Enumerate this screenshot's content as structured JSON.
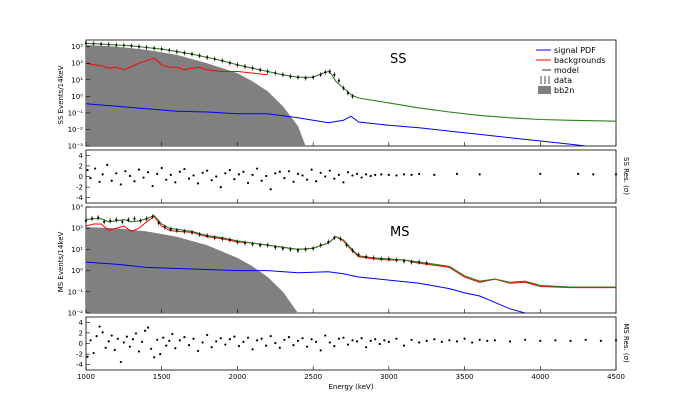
{
  "chart_data": [
    {
      "type": "line",
      "panel": "SS",
      "label": "SS",
      "ylabel": "SS Events/14keV",
      "yscale": "log",
      "xlim": [
        1000,
        4500
      ],
      "ylim_exp": [
        -3,
        3.4
      ],
      "yticks": [
        "10³",
        "10²",
        "10¹",
        "10⁰",
        "10⁻¹",
        "10⁻²",
        "10⁻³"
      ],
      "legend": [
        "signal PDF",
        "backgrounds",
        "model",
        "data",
        "bb2n"
      ],
      "series": [
        {
          "name": "bb2n",
          "x": [
            1000,
            1200,
            1400,
            1600,
            1800,
            2000,
            2100,
            2200,
            2300,
            2400,
            2450
          ],
          "log10y": [
            3.1,
            3.0,
            2.8,
            2.5,
            2.0,
            1.4,
            0.9,
            0.3,
            -0.6,
            -1.8,
            -3.0
          ]
        },
        {
          "name": "signal PDF",
          "x": [
            1000,
            1200,
            1400,
            1600,
            1800,
            2000,
            2200,
            2400,
            2600,
            2700,
            2750,
            2800,
            3000,
            3200,
            3400,
            3600,
            3800,
            4000,
            4200,
            4300
          ],
          "log10y": [
            -0.45,
            -0.6,
            -0.75,
            -0.9,
            -0.95,
            -1.05,
            -1.05,
            -1.3,
            -1.6,
            -1.45,
            -1.2,
            -1.55,
            -1.75,
            -1.9,
            -2.1,
            -2.3,
            -2.5,
            -2.7,
            -2.9,
            -3.0
          ]
        },
        {
          "name": "backgrounds",
          "x": [
            1000,
            1050,
            1100,
            1150,
            1200,
            1250,
            1300,
            1350,
            1400,
            1450,
            1500,
            1550,
            1600,
            1650,
            1700,
            1750,
            1800,
            1850,
            1900,
            1950,
            2000,
            2050,
            2100,
            2150,
            2200
          ],
          "log10y": [
            2.0,
            1.9,
            1.85,
            1.7,
            1.75,
            1.6,
            1.8,
            2.0,
            2.15,
            2.3,
            1.9,
            1.75,
            1.75,
            1.6,
            1.7,
            1.75,
            1.6,
            1.55,
            1.5,
            1.5,
            1.5,
            1.45,
            1.4,
            1.35,
            1.3
          ]
        },
        {
          "name": "model",
          "x": [
            1000,
            1100,
            1200,
            1300,
            1400,
            1500,
            1600,
            1700,
            1800,
            1900,
            2000,
            2100,
            2200,
            2300,
            2400,
            2500,
            2550,
            2600,
            2620,
            2650,
            2700,
            2750,
            2800,
            3000,
            3200,
            3400,
            3600,
            3800,
            4000,
            4200,
            4500
          ],
          "log10y": [
            3.2,
            3.15,
            3.1,
            3.05,
            2.95,
            2.85,
            2.7,
            2.55,
            2.35,
            2.15,
            1.9,
            1.7,
            1.5,
            1.3,
            1.15,
            1.15,
            1.35,
            1.5,
            1.35,
            0.9,
            0.5,
            0.1,
            -0.1,
            -0.4,
            -0.7,
            -0.95,
            -1.15,
            -1.3,
            -1.4,
            -1.45,
            -1.5
          ]
        }
      ],
      "data_points": {
        "x": [
          1000,
          1050,
          1100,
          1150,
          1200,
          1250,
          1300,
          1350,
          1400,
          1450,
          1500,
          1550,
          1600,
          1650,
          1700,
          1750,
          1800,
          1850,
          1900,
          1950,
          2000,
          2050,
          2100,
          2150,
          2200,
          2250,
          2300,
          2350,
          2400,
          2450,
          2500,
          2550,
          2580,
          2610,
          2640,
          2670,
          2700,
          2730,
          2760
        ],
        "log10y": [
          3.2,
          3.18,
          3.15,
          3.13,
          3.1,
          3.08,
          3.05,
          3.0,
          2.95,
          2.9,
          2.85,
          2.78,
          2.7,
          2.62,
          2.55,
          2.45,
          2.35,
          2.25,
          2.15,
          2.02,
          1.9,
          1.8,
          1.7,
          1.6,
          1.5,
          1.4,
          1.3,
          1.2,
          1.15,
          1.1,
          1.15,
          1.3,
          1.45,
          1.5,
          1.3,
          0.95,
          0.5,
          0.2,
          0.0
        ]
      }
    },
    {
      "type": "scatter",
      "panel": "SS residuals",
      "ylabel": "SS Res. (σ)",
      "xlim": [
        1000,
        4500
      ],
      "ylim": [
        -5,
        5
      ],
      "yticks": [
        "4",
        "2",
        "0",
        "-2",
        "-4"
      ],
      "x": [
        1010,
        1030,
        1060,
        1090,
        1110,
        1140,
        1170,
        1200,
        1230,
        1260,
        1290,
        1320,
        1350,
        1380,
        1410,
        1440,
        1470,
        1500,
        1530,
        1560,
        1590,
        1620,
        1650,
        1680,
        1710,
        1740,
        1770,
        1800,
        1830,
        1860,
        1890,
        1920,
        1950,
        1980,
        2010,
        2040,
        2070,
        2100,
        2130,
        2160,
        2190,
        2220,
        2250,
        2280,
        2310,
        2340,
        2370,
        2400,
        2430,
        2460,
        2490,
        2520,
        2550,
        2580,
        2610,
        2640,
        2670,
        2700,
        2730,
        2760,
        2790,
        2820,
        2850,
        2880,
        2910,
        2950,
        3000,
        3050,
        3100,
        3150,
        3200,
        3300,
        3450,
        3600,
        4000,
        4250,
        4350,
        4500
      ],
      "y": [
        1.2,
        -0.3,
        1.5,
        -1.0,
        0.4,
        2.2,
        -0.8,
        0.6,
        -1.5,
        1.0,
        0.1,
        -0.9,
        1.3,
        -0.2,
        0.8,
        -1.8,
        0.5,
        1.6,
        -0.6,
        0.3,
        -1.1,
        0.9,
        1.4,
        -0.4,
        0.2,
        -1.3,
        0.7,
        1.1,
        -0.7,
        0.0,
        -2.0,
        0.6,
        1.2,
        -0.5,
        0.4,
        0.9,
        -1.2,
        0.3,
        1.5,
        -0.8,
        0.1,
        -2.4,
        0.6,
        0.9,
        -0.3,
        1.0,
        -1.0,
        0.5,
        0.2,
        -0.6,
        1.3,
        -0.9,
        0.7,
        0.0,
        1.1,
        -0.4,
        0.3,
        -1.1,
        0.8,
        0.2,
        0.5,
        -0.2,
        0.4,
        0.1,
        0.3,
        0.4,
        0.3,
        0.2,
        0.4,
        0.3,
        0.5,
        0.3,
        0.5,
        0.4,
        0.5,
        0.5,
        0.4,
        0.4
      ]
    },
    {
      "type": "line",
      "panel": "MS",
      "label": "MS",
      "ylabel": "MS Events/14keV",
      "yscale": "log",
      "xlim": [
        1000,
        4500
      ],
      "ylim_exp": [
        -2,
        3
      ],
      "yticks": [
        "10³",
        "10²",
        "10¹",
        "10⁰",
        "10⁻¹",
        "10⁻²"
      ],
      "series": [
        {
          "name": "bb2n",
          "x": [
            1000,
            1200,
            1400,
            1600,
            1800,
            2000,
            2100,
            2200,
            2300,
            2350,
            2400
          ],
          "log10y": [
            2.05,
            2.0,
            1.85,
            1.6,
            1.2,
            0.6,
            0.2,
            -0.3,
            -1.0,
            -1.5,
            -2.0
          ]
        },
        {
          "name": "signal PDF",
          "x": [
            1000,
            1200,
            1400,
            1600,
            1800,
            2000,
            2200,
            2400,
            2600,
            2700,
            2800,
            3000,
            3200,
            3400,
            3500,
            3600,
            3700,
            3800,
            3900
          ],
          "log10y": [
            0.4,
            0.3,
            0.15,
            0.1,
            0.05,
            0.0,
            0.0,
            -0.1,
            -0.05,
            -0.15,
            -0.3,
            -0.45,
            -0.6,
            -0.85,
            -1.05,
            -1.2,
            -1.5,
            -1.8,
            -2.0
          ]
        },
        {
          "name": "backgrounds",
          "x": [
            1000,
            1050,
            1100,
            1150,
            1200,
            1250,
            1300,
            1350,
            1400,
            1450,
            1500,
            1550,
            1600,
            1700,
            1800,
            1900,
            2000,
            2100,
            2200,
            2300,
            2400,
            2500,
            2600,
            2650,
            2700,
            2750,
            2800,
            2900,
            3000,
            3100,
            3200,
            3300,
            3400,
            3500,
            3600,
            3700,
            3800,
            3900,
            4000,
            4200,
            4500
          ],
          "log10y": [
            2.1,
            2.2,
            2.2,
            1.9,
            2.0,
            2.1,
            1.85,
            2.0,
            2.3,
            2.55,
            2.1,
            1.9,
            1.85,
            1.8,
            1.6,
            1.5,
            1.35,
            1.3,
            1.2,
            1.1,
            1.0,
            1.05,
            1.3,
            1.6,
            1.4,
            1.0,
            0.65,
            0.55,
            0.5,
            0.5,
            0.35,
            0.25,
            0.15,
            -0.3,
            -0.55,
            -0.4,
            -0.6,
            -0.55,
            -0.75,
            -0.8,
            -0.8
          ]
        },
        {
          "name": "model",
          "x": [
            1000,
            1050,
            1100,
            1150,
            1200,
            1250,
            1300,
            1350,
            1400,
            1450,
            1500,
            1550,
            1600,
            1700,
            1800,
            1900,
            2000,
            2100,
            2200,
            2300,
            2400,
            2500,
            2600,
            2650,
            2700,
            2750,
            2800,
            2900,
            3000,
            3100,
            3200,
            3300,
            3400,
            3500,
            3600,
            3700,
            3800,
            3900,
            4000,
            4200,
            4500
          ],
          "log10y": [
            2.4,
            2.45,
            2.45,
            2.3,
            2.35,
            2.4,
            2.3,
            2.35,
            2.45,
            2.6,
            2.2,
            2.0,
            1.95,
            1.85,
            1.65,
            1.55,
            1.4,
            1.3,
            1.2,
            1.1,
            1.0,
            1.05,
            1.3,
            1.6,
            1.45,
            1.05,
            0.7,
            0.6,
            0.55,
            0.5,
            0.4,
            0.3,
            0.2,
            -0.25,
            -0.5,
            -0.4,
            -0.55,
            -0.5,
            -0.7,
            -0.78,
            -0.78
          ]
        }
      ],
      "data_points": {
        "x": [
          1000,
          1040,
          1080,
          1120,
          1160,
          1200,
          1240,
          1280,
          1320,
          1360,
          1400,
          1440,
          1480,
          1520,
          1560,
          1600,
          1650,
          1700,
          1750,
          1800,
          1850,
          1900,
          1950,
          2000,
          2050,
          2100,
          2150,
          2200,
          2250,
          2300,
          2350,
          2400,
          2450,
          2500,
          2550,
          2600,
          2640,
          2680,
          2720,
          2760,
          2800,
          2850,
          2900,
          2950,
          3000,
          3050,
          3100,
          3150,
          3200,
          3250
        ],
        "log10y": [
          2.35,
          2.45,
          2.5,
          2.3,
          2.35,
          2.4,
          2.3,
          2.4,
          2.45,
          2.35,
          2.45,
          2.55,
          2.25,
          2.05,
          1.95,
          1.9,
          1.85,
          1.8,
          1.7,
          1.65,
          1.55,
          1.5,
          1.45,
          1.35,
          1.3,
          1.25,
          1.2,
          1.2,
          1.1,
          1.05,
          1.0,
          0.95,
          1.0,
          1.05,
          1.2,
          1.35,
          1.55,
          1.5,
          1.2,
          0.95,
          0.75,
          0.65,
          0.6,
          0.55,
          0.55,
          0.5,
          0.45,
          0.4,
          0.4,
          0.35
        ]
      }
    },
    {
      "type": "scatter",
      "panel": "MS residuals",
      "ylabel": "MS Res. (σ)",
      "xlabel": "Energy (keV)",
      "xlim": [
        1000,
        4500
      ],
      "ylim": [
        -5,
        5
      ],
      "yticks": [
        "4",
        "2",
        "0",
        "-2",
        "-4"
      ],
      "xticks": [
        "1000",
        "1500",
        "2000",
        "2500",
        "3000",
        "3500",
        "4000",
        "4500"
      ],
      "x": [
        1010,
        1030,
        1050,
        1070,
        1090,
        1110,
        1130,
        1150,
        1170,
        1190,
        1210,
        1230,
        1250,
        1270,
        1290,
        1310,
        1330,
        1350,
        1370,
        1390,
        1410,
        1430,
        1450,
        1470,
        1490,
        1510,
        1530,
        1550,
        1570,
        1590,
        1620,
        1650,
        1680,
        1710,
        1740,
        1770,
        1800,
        1830,
        1860,
        1890,
        1920,
        1950,
        1980,
        2010,
        2040,
        2070,
        2100,
        2130,
        2160,
        2190,
        2220,
        2250,
        2280,
        2310,
        2340,
        2370,
        2400,
        2430,
        2460,
        2490,
        2520,
        2550,
        2580,
        2610,
        2640,
        2670,
        2700,
        2730,
        2760,
        2790,
        2820,
        2850,
        2880,
        2910,
        2940,
        2970,
        3000,
        3050,
        3100,
        3150,
        3200,
        3250,
        3300,
        3350,
        3400,
        3450,
        3500,
        3550,
        3600,
        3650,
        3700,
        3800,
        3900,
        4000,
        4100,
        4200,
        4300,
        4400,
        4500
      ],
      "y": [
        -2.5,
        0.6,
        -1.8,
        1.4,
        3.2,
        2.1,
        -0.8,
        0.4,
        1.5,
        -1.2,
        0.9,
        -3.5,
        0.2,
        1.3,
        -0.6,
        0.8,
        1.9,
        -1.5,
        0.3,
        2.4,
        3.0,
        -1.0,
        -2.6,
        0.7,
        -2.0,
        1.1,
        -0.4,
        0.5,
        1.8,
        -0.9,
        0.6,
        1.2,
        -0.3,
        0.9,
        -1.4,
        0.2,
        1.6,
        -0.7,
        0.4,
        1.0,
        -0.2,
        0.8,
        1.3,
        -0.5,
        0.3,
        1.1,
        -1.1,
        0.6,
        0.9,
        -0.4,
        1.4,
        0.1,
        -0.8,
        0.7,
        1.2,
        -0.3,
        0.5,
        1.0,
        -0.6,
        0.8,
        0.3,
        -1.3,
        1.5,
        0.2,
        -0.5,
        0.9,
        1.1,
        -0.2,
        0.6,
        0.4,
        1.0,
        -0.7,
        0.5,
        0.8,
        -0.1,
        0.6,
        0.3,
        0.9,
        -0.4,
        0.7,
        0.2,
        0.5,
        0.8,
        0.3,
        0.6,
        0.4,
        0.9,
        0.2,
        0.7,
        0.5,
        0.6,
        0.4,
        0.7,
        0.5,
        0.6,
        0.5,
        0.7,
        0.5,
        0.6
      ]
    }
  ],
  "colors": {
    "signal": "#0000ff",
    "backgrounds": "#ff0000",
    "model": "#2e7d1f",
    "bb2n": "#808080",
    "data": "#000000"
  }
}
